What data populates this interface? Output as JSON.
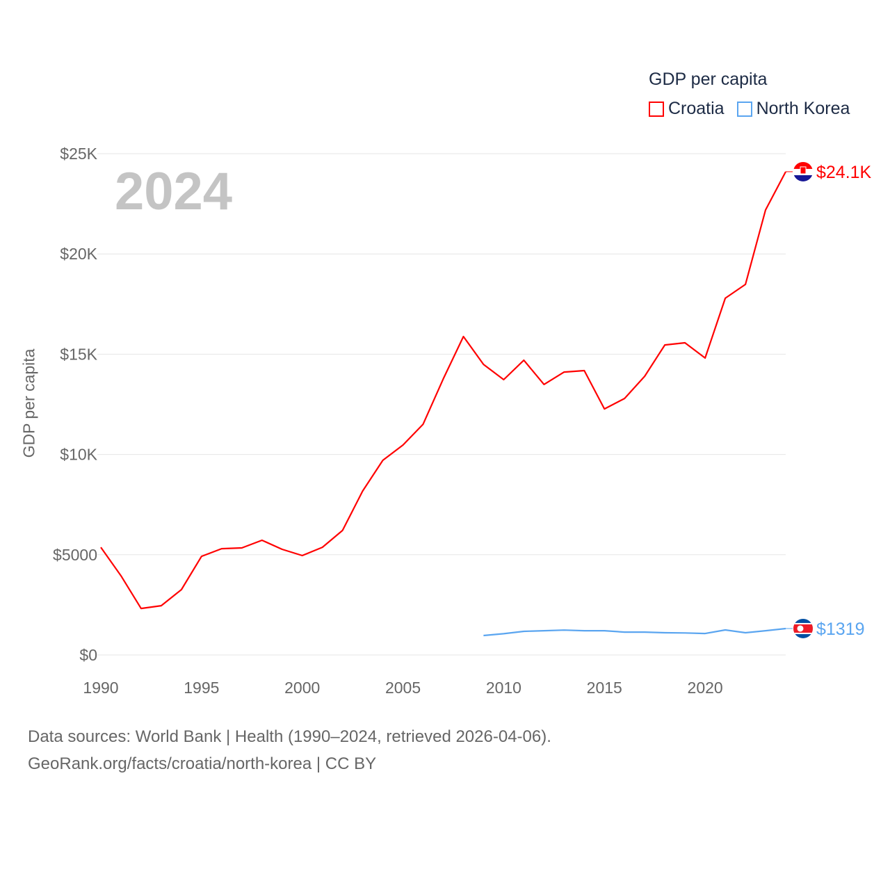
{
  "chart_data": {
    "type": "line",
    "title": "2024",
    "ylabel": "GDP per capita",
    "xlabel": "",
    "legend_title": "GDP per capita",
    "legend_position": "top-right",
    "xlim": [
      1990,
      2024
    ],
    "ylim": [
      0,
      25000
    ],
    "x_ticks": [
      "1990",
      "1995",
      "2000",
      "2005",
      "2010",
      "2015",
      "2020"
    ],
    "x_tick_values": [
      1990,
      1995,
      2000,
      2005,
      2010,
      2015,
      2020
    ],
    "y_ticks": [
      "$0",
      "$5000",
      "$10K",
      "$15K",
      "$20K",
      "$25K"
    ],
    "y_tick_values": [
      0,
      5000,
      10000,
      15000,
      20000,
      25000
    ],
    "grid": true,
    "series": [
      {
        "name": "Croatia",
        "color": "#ff0000",
        "end_label": "$24.1K",
        "x": [
          1990,
          1991,
          1992,
          1993,
          1994,
          1995,
          1996,
          1997,
          1998,
          1999,
          2000,
          2001,
          2002,
          2003,
          2004,
          2005,
          2006,
          2007,
          2008,
          2009,
          2010,
          2011,
          2012,
          2013,
          2014,
          2015,
          2016,
          2017,
          2018,
          2019,
          2020,
          2021,
          2022,
          2023,
          2024
        ],
        "values": [
          5370,
          3950,
          2320,
          2460,
          3260,
          4920,
          5300,
          5340,
          5720,
          5270,
          4960,
          5370,
          6210,
          8180,
          9710,
          10470,
          11510,
          13770,
          15880,
          14490,
          13730,
          14700,
          13490,
          14110,
          14180,
          12270,
          12790,
          13900,
          15460,
          15570,
          14810,
          17790,
          18480,
          22190,
          24100
        ]
      },
      {
        "name": "North Korea",
        "color": "#5aa5f0",
        "end_label": "$1319",
        "x": [
          2009,
          2010,
          2011,
          2012,
          2013,
          2014,
          2015,
          2016,
          2017,
          2018,
          2019,
          2020,
          2021,
          2022,
          2023,
          2024
        ],
        "values": [
          970,
          1060,
          1180,
          1210,
          1240,
          1210,
          1210,
          1140,
          1140,
          1110,
          1100,
          1070,
          1250,
          1110,
          1210,
          1319
        ]
      }
    ]
  },
  "sources": {
    "line1": "Data sources: World Bank | Health (1990–2024, retrieved 2026-04-06).",
    "line2": "GeoRank.org/facts/croatia/north-korea | CC BY"
  }
}
